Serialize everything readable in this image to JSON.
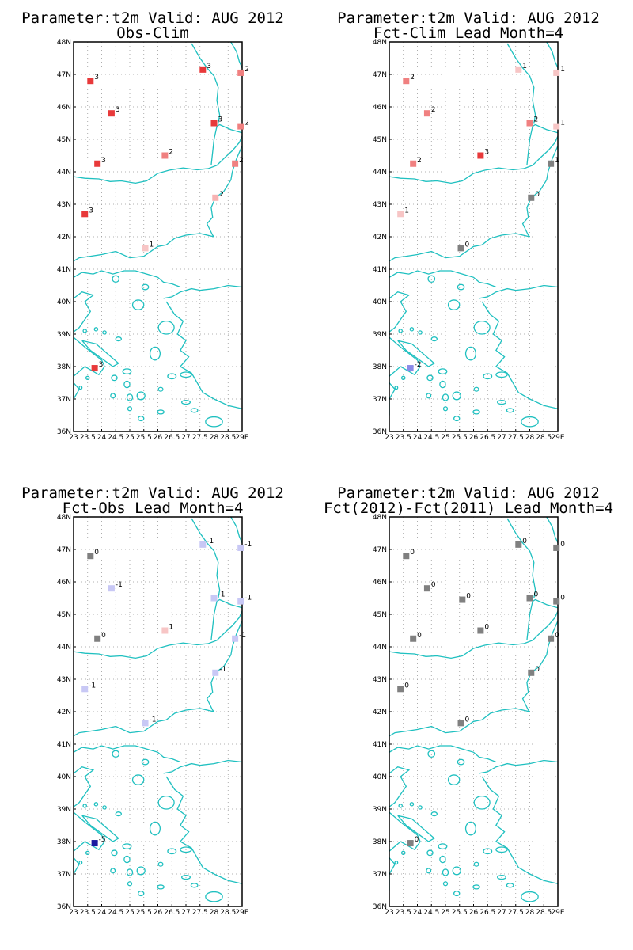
{
  "panels": [
    {
      "title_line1": "Parameter:t2m Valid: AUG 2012",
      "title_line2": "Obs-Clim",
      "stations": [
        {
          "lon": 23.6,
          "lat": 46.8,
          "v": "3",
          "color": "#e8393a"
        },
        {
          "lon": 24.35,
          "lat": 45.8,
          "v": "3",
          "color": "#e8393a"
        },
        {
          "lon": 27.6,
          "lat": 47.15,
          "v": "3",
          "color": "#e8393a"
        },
        {
          "lon": 28.95,
          "lat": 47.05,
          "v": "2",
          "color": "#f08080"
        },
        {
          "lon": 28.0,
          "lat": 45.5,
          "v": "3",
          "color": "#e8393a"
        },
        {
          "lon": 28.95,
          "lat": 45.4,
          "v": "2",
          "color": "#f08080"
        },
        {
          "lon": 23.85,
          "lat": 44.25,
          "v": "3",
          "color": "#e8393a"
        },
        {
          "lon": 26.25,
          "lat": 44.5,
          "v": "2",
          "color": "#f08080"
        },
        {
          "lon": 28.75,
          "lat": 44.25,
          "v": "2",
          "color": "#f08080"
        },
        {
          "lon": 28.05,
          "lat": 43.2,
          "v": "2",
          "color": "#f7b3b3"
        },
        {
          "lon": 23.4,
          "lat": 42.7,
          "v": "3",
          "color": "#e8393a"
        },
        {
          "lon": 25.55,
          "lat": 41.65,
          "v": "1",
          "color": "#f7c5c5"
        },
        {
          "lon": 23.75,
          "lat": 37.95,
          "v": "3",
          "color": "#e8393a"
        }
      ]
    },
    {
      "title_line1": "Parameter:t2m Valid: AUG 2012",
      "title_line2": "Fct-Clim Lead Month=4",
      "stations": [
        {
          "lon": 23.6,
          "lat": 46.8,
          "v": "2",
          "color": "#f08080"
        },
        {
          "lon": 24.35,
          "lat": 45.8,
          "v": "2",
          "color": "#f08080"
        },
        {
          "lon": 27.6,
          "lat": 47.15,
          "v": "1",
          "color": "#f7c5c5"
        },
        {
          "lon": 28.95,
          "lat": 47.05,
          "v": "1",
          "color": "#f7c5c5"
        },
        {
          "lon": 28.0,
          "lat": 45.5,
          "v": "2",
          "color": "#f08080"
        },
        {
          "lon": 28.95,
          "lat": 45.4,
          "v": "1",
          "color": "#f7c5c5"
        },
        {
          "lon": 23.85,
          "lat": 44.25,
          "v": "2",
          "color": "#f08080"
        },
        {
          "lon": 26.25,
          "lat": 44.5,
          "v": "3",
          "color": "#e8393a"
        },
        {
          "lon": 28.75,
          "lat": 44.25,
          "v": "1",
          "color": "#808080"
        },
        {
          "lon": 28.05,
          "lat": 43.2,
          "v": "0",
          "color": "#808080"
        },
        {
          "lon": 23.4,
          "lat": 42.7,
          "v": "1",
          "color": "#f7c5c5"
        },
        {
          "lon": 25.55,
          "lat": 41.65,
          "v": "0",
          "color": "#808080"
        },
        {
          "lon": 23.75,
          "lat": 37.95,
          "v": "-2",
          "color": "#8a8ae8"
        }
      ]
    },
    {
      "title_line1": "Parameter:t2m Valid: AUG 2012",
      "title_line2": "Fct-Obs Lead Month=4",
      "stations": [
        {
          "lon": 23.6,
          "lat": 46.8,
          "v": "0",
          "color": "#808080"
        },
        {
          "lon": 24.35,
          "lat": 45.8,
          "v": "-1",
          "color": "#c8c8f5"
        },
        {
          "lon": 27.6,
          "lat": 47.15,
          "v": "-1",
          "color": "#c8c8f5"
        },
        {
          "lon": 28.95,
          "lat": 47.05,
          "v": "-1",
          "color": "#c8c8f5"
        },
        {
          "lon": 28.0,
          "lat": 45.5,
          "v": "-1",
          "color": "#c8c8f5"
        },
        {
          "lon": 28.95,
          "lat": 45.4,
          "v": "-1",
          "color": "#c8c8f5"
        },
        {
          "lon": 23.85,
          "lat": 44.25,
          "v": "0",
          "color": "#808080"
        },
        {
          "lon": 26.25,
          "lat": 44.5,
          "v": "1",
          "color": "#f7c5c5"
        },
        {
          "lon": 28.75,
          "lat": 44.25,
          "v": "-1",
          "color": "#c8c8f5"
        },
        {
          "lon": 28.05,
          "lat": 43.2,
          "v": "-1",
          "color": "#c8c8f5"
        },
        {
          "lon": 23.4,
          "lat": 42.7,
          "v": "-1",
          "color": "#c8c8f5"
        },
        {
          "lon": 25.55,
          "lat": 41.65,
          "v": "-1",
          "color": "#c8c8f5"
        },
        {
          "lon": 23.75,
          "lat": 37.95,
          "v": "-5",
          "color": "#1a1aa0"
        }
      ]
    },
    {
      "title_line1": "Parameter:t2m Valid: AUG 2012",
      "title_line2": "Fct(2012)-Fct(2011) Lead Month=4",
      "stations": [
        {
          "lon": 23.6,
          "lat": 46.8,
          "v": "0",
          "color": "#808080"
        },
        {
          "lon": 24.35,
          "lat": 45.8,
          "v": "0",
          "color": "#808080"
        },
        {
          "lon": 27.6,
          "lat": 47.15,
          "v": "0",
          "color": "#808080"
        },
        {
          "lon": 28.95,
          "lat": 47.05,
          "v": "0",
          "color": "#808080"
        },
        {
          "lon": 28.0,
          "lat": 45.5,
          "v": "0",
          "color": "#808080"
        },
        {
          "lon": 28.95,
          "lat": 45.4,
          "v": "0",
          "color": "#808080"
        },
        {
          "lon": 25.6,
          "lat": 45.45,
          "v": "0",
          "color": "#808080"
        },
        {
          "lon": 23.85,
          "lat": 44.25,
          "v": "0",
          "color": "#808080"
        },
        {
          "lon": 26.25,
          "lat": 44.5,
          "v": "0",
          "color": "#808080"
        },
        {
          "lon": 28.75,
          "lat": 44.25,
          "v": "0",
          "color": "#808080"
        },
        {
          "lon": 28.05,
          "lat": 43.2,
          "v": "0",
          "color": "#808080"
        },
        {
          "lon": 23.4,
          "lat": 42.7,
          "v": "0",
          "color": "#808080"
        },
        {
          "lon": 25.55,
          "lat": 41.65,
          "v": "0",
          "color": "#808080"
        },
        {
          "lon": 23.75,
          "lat": 37.95,
          "v": "0",
          "color": "#808080"
        }
      ]
    }
  ],
  "axes": {
    "lat_labels": [
      "48N",
      "47N",
      "46N",
      "45N",
      "44N",
      "43N",
      "42N",
      "41N",
      "40N",
      "39N",
      "38N",
      "37N",
      "36N"
    ],
    "lat_values": [
      48,
      47,
      46,
      45,
      44,
      43,
      42,
      41,
      40,
      39,
      38,
      37,
      36
    ],
    "lon_labels": [
      "23",
      "23.5",
      "24",
      "24.5",
      "25",
      "25.5",
      "26",
      "26.5",
      "27",
      "27.5",
      "28",
      "28.5",
      "29E"
    ],
    "lon_values": [
      23,
      23.5,
      24,
      24.5,
      25,
      25.5,
      26,
      26.5,
      27,
      27.5,
      28,
      28.5,
      29
    ],
    "lon_range": [
      23,
      29
    ],
    "lat_range": [
      36,
      48
    ]
  },
  "colors": {
    "coast": "#1fc0c0",
    "grid": "#999999"
  }
}
